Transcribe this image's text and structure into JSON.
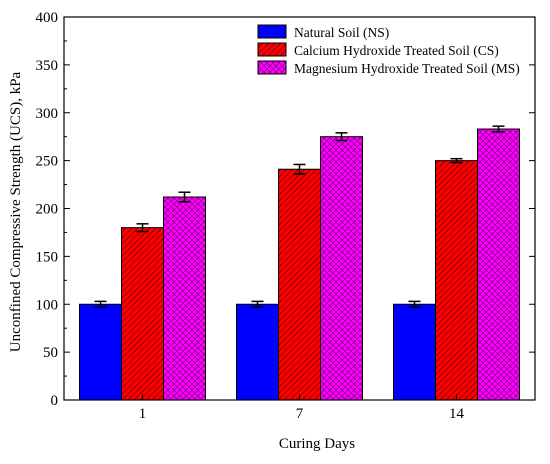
{
  "colors": {
    "ns": "#0000ff",
    "cs": "#ff0000",
    "ms": "#ff00ff"
  },
  "chart_data": {
    "type": "bar",
    "categories": [
      "1",
      "7",
      "14"
    ],
    "series": [
      {
        "name": "Natural Soil (NS)",
        "values": [
          100,
          100,
          100
        ],
        "errors": [
          3,
          3,
          3
        ]
      },
      {
        "name": "Calcium Hydroxide Treated Soil (CS)",
        "values": [
          180,
          241,
          250
        ],
        "errors": [
          4,
          5,
          2
        ]
      },
      {
        "name": "Magnesium Hydroxide Treated Soil (MS)",
        "values": [
          212,
          275,
          283
        ],
        "errors": [
          5,
          4,
          3
        ]
      }
    ],
    "xlabel": "Curing Days",
    "ylabel": "Unconfined Compressive Strength (UCS), kPa",
    "ylim": [
      0,
      400
    ],
    "yticks": [
      0,
      50,
      100,
      150,
      200,
      250,
      300,
      350,
      400
    ],
    "grid": false,
    "legend": "top-right"
  }
}
